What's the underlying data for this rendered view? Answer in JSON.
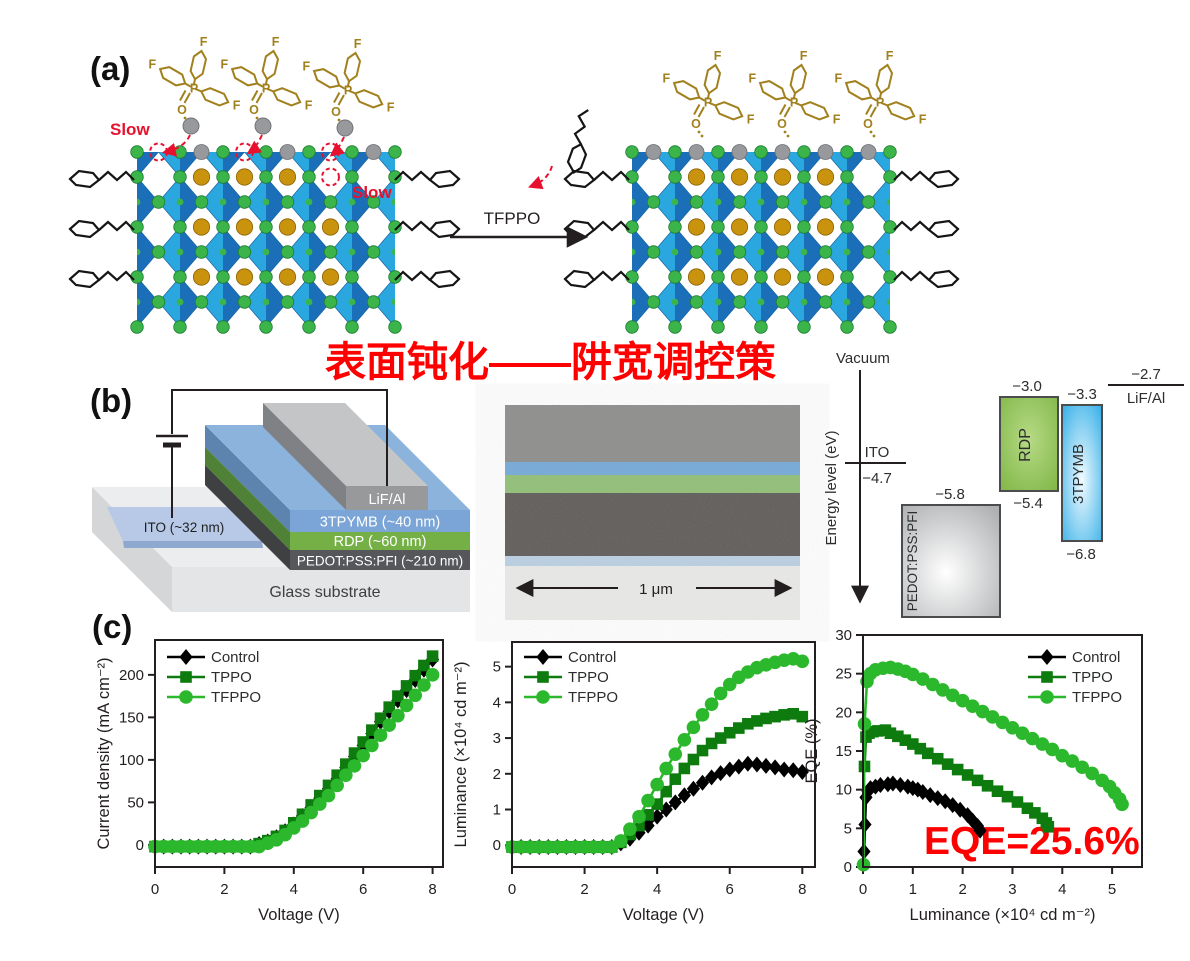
{
  "colors": {
    "annotation_red": "#ff0000",
    "slow_red": "#e8112d",
    "molecule_gold": "#a1801d",
    "lattice_blue_light": "#2ba7e0",
    "lattice_blue_dark": "#1b6fb8",
    "lattice_edge": "#1263a5",
    "ion_green": "#3bb54a",
    "ion_gold": "#c9930d",
    "ion_grey": "#97999c",
    "series_control": "#000000",
    "series_tppo": "#0d7b0d",
    "series_tfppo": "#2cb82c",
    "axis_ink": "#231f20"
  },
  "panel_a": {
    "label": "(a)",
    "slow_1": "Slow",
    "slow_2": "Slow",
    "arrow_label": "TFPPO",
    "atoms": {
      "p": "P",
      "o": "O",
      "f": "F"
    },
    "title_cn": "表面钝化——阱宽调控策"
  },
  "panel_b": {
    "label": "(b)",
    "device": {
      "lif_al": "LiF/Al",
      "tpymb": "3TPYMB (~40 nm)",
      "rdp": "RDP (~60 nm)",
      "pedot": "PEDOT:PSS:PFI (~210 nm)",
      "ito": "ITO (~32 nm)",
      "glass": "Glass substrate"
    },
    "sem": {
      "scale_label": "1 μm"
    },
    "energy": {
      "vacuum": "Vacuum",
      "axis_label": "Energy level (eV)",
      "ito": "ITO",
      "ito_level": "−4.7",
      "pedot": "PEDOT:PSS:PFI",
      "pedot_level": "−5.8",
      "rdp": "RDP",
      "rdp_top": "−3.0",
      "rdp_bottom": "−5.4",
      "tpymb": "3TPYMB",
      "tpymb_top": "−3.3",
      "tpymb_bottom": "−6.8",
      "lifal": "LiF/Al",
      "lifal_level": "−2.7"
    }
  },
  "panel_c": {
    "label": "(c)",
    "eqe_annotation": "EQE=25.6%"
  },
  "chart_data": [
    {
      "type": "line",
      "xlabel": "Voltage (V)",
      "ylabel": "Current density (mA cm⁻²)",
      "xlim": [
        0,
        8.3
      ],
      "ylim": [
        -26,
        241
      ],
      "xticks": [
        0,
        2,
        4,
        6,
        8
      ],
      "yticks": [
        0,
        50,
        100,
        150,
        200
      ],
      "legend_position": "top-left",
      "grid": false,
      "series": [
        {
          "name": "Control",
          "color": "#000000",
          "marker": "diamond",
          "x": [
            0,
            0.25,
            0.5,
            0.75,
            1,
            1.25,
            1.5,
            1.75,
            2,
            2.25,
            2.5,
            2.75,
            3,
            3.25,
            3.5,
            3.75,
            4,
            4.25,
            4.5,
            4.75,
            5,
            5.25,
            5.5,
            5.75,
            6,
            6.25,
            6.5,
            6.75,
            7,
            7.25,
            7.5,
            7.75,
            8
          ],
          "y": [
            -2,
            -2,
            -2,
            -2,
            -2,
            -2,
            -2,
            -2,
            -2,
            -2,
            -2,
            -2,
            1,
            4,
            9,
            16,
            24,
            34,
            44,
            55,
            66,
            78,
            91,
            104,
            117,
            131,
            145,
            157,
            170,
            182,
            194,
            206,
            218
          ]
        },
        {
          "name": "TPPO",
          "color": "#0d7b0d",
          "marker": "square",
          "x": [
            0,
            0.25,
            0.5,
            0.75,
            1,
            1.25,
            1.5,
            1.75,
            2,
            2.25,
            2.5,
            2.75,
            3,
            3.25,
            3.5,
            3.75,
            4,
            4.25,
            4.5,
            4.75,
            5,
            5.25,
            5.5,
            5.75,
            6,
            6.25,
            6.5,
            6.75,
            7,
            7.25,
            7.5,
            7.75,
            8
          ],
          "y": [
            -2,
            -2,
            -2,
            -2,
            -2,
            -2,
            -2,
            -2,
            -2,
            -2,
            -2,
            -2,
            1.5,
            5,
            10,
            17,
            26,
            36,
            47,
            58,
            70,
            82,
            95,
            108,
            121,
            135,
            149,
            162,
            175,
            187,
            199,
            211,
            222
          ]
        },
        {
          "name": "TFPPO",
          "color": "#2cb82c",
          "marker": "circle",
          "x": [
            0,
            0.25,
            0.5,
            0.75,
            1,
            1.25,
            1.5,
            1.75,
            2,
            2.25,
            2.5,
            2.75,
            3,
            3.25,
            3.5,
            3.75,
            4,
            4.25,
            4.5,
            4.75,
            5,
            5.25,
            5.5,
            5.75,
            6,
            6.25,
            6.5,
            6.75,
            7,
            7.25,
            7.5,
            7.75,
            8
          ],
          "y": [
            -2,
            -2,
            -2,
            -2,
            -2,
            -2,
            -2,
            -2,
            -2,
            -2,
            -2,
            -2,
            -2,
            2,
            6,
            12,
            20,
            28,
            38,
            48,
            58,
            70,
            82,
            93,
            105,
            117,
            129,
            141,
            152,
            164,
            176,
            188,
            200
          ]
        }
      ]
    },
    {
      "type": "line",
      "xlabel": "Voltage (V)",
      "ylabel": "Luminance (×10⁴ cd m⁻²)",
      "xlim": [
        0,
        8.35
      ],
      "ylim": [
        -0.61,
        5.69
      ],
      "xticks": [
        0,
        2,
        4,
        6,
        8
      ],
      "yticks": [
        0,
        1,
        2,
        3,
        4,
        5
      ],
      "legend_position": "top-left",
      "grid": false,
      "series": [
        {
          "name": "Control",
          "color": "#000000",
          "marker": "diamond",
          "x": [
            0,
            0.25,
            0.5,
            0.75,
            1,
            1.25,
            1.5,
            1.75,
            2,
            2.25,
            2.5,
            2.75,
            3,
            3.25,
            3.5,
            3.75,
            4,
            4.25,
            4.5,
            4.75,
            5,
            5.25,
            5.5,
            5.75,
            6,
            6.25,
            6.5,
            6.75,
            7,
            7.25,
            7.5,
            7.75,
            8
          ],
          "y": [
            -0.05,
            -0.05,
            -0.05,
            -0.05,
            -0.05,
            -0.05,
            -0.05,
            -0.05,
            -0.05,
            -0.05,
            -0.05,
            -0.05,
            0.05,
            0.18,
            0.35,
            0.55,
            0.8,
            1.0,
            1.2,
            1.4,
            1.58,
            1.75,
            1.9,
            2.02,
            2.12,
            2.2,
            2.28,
            2.26,
            2.22,
            2.18,
            2.12,
            2.1,
            2.05
          ]
        },
        {
          "name": "TPPO",
          "color": "#0d7b0d",
          "marker": "square",
          "x": [
            0,
            0.25,
            0.5,
            0.75,
            1,
            1.25,
            1.5,
            1.75,
            2,
            2.25,
            2.5,
            2.75,
            3,
            3.25,
            3.5,
            3.75,
            4,
            4.25,
            4.5,
            4.75,
            5,
            5.25,
            5.5,
            5.75,
            6,
            6.25,
            6.5,
            6.75,
            7,
            7.25,
            7.5,
            7.75,
            8
          ],
          "y": [
            -0.05,
            -0.05,
            -0.05,
            -0.05,
            -0.05,
            -0.05,
            -0.05,
            -0.05,
            -0.05,
            -0.05,
            -0.05,
            -0.05,
            0.08,
            0.3,
            0.55,
            0.85,
            1.15,
            1.5,
            1.85,
            2.15,
            2.4,
            2.65,
            2.85,
            3.0,
            3.15,
            3.28,
            3.4,
            3.48,
            3.55,
            3.6,
            3.65,
            3.68,
            3.6
          ]
        },
        {
          "name": "TFPPO",
          "color": "#2cb82c",
          "marker": "circle",
          "x": [
            0,
            0.25,
            0.5,
            0.75,
            1,
            1.25,
            1.5,
            1.75,
            2,
            2.25,
            2.5,
            2.75,
            3,
            3.25,
            3.5,
            3.75,
            4,
            4.25,
            4.5,
            4.75,
            5,
            5.25,
            5.5,
            5.75,
            6,
            6.25,
            6.5,
            6.75,
            7,
            7.25,
            7.5,
            7.75,
            8
          ],
          "y": [
            -0.05,
            -0.05,
            -0.05,
            -0.05,
            -0.05,
            -0.05,
            -0.05,
            -0.05,
            -0.05,
            -0.05,
            -0.05,
            -0.05,
            0.12,
            0.45,
            0.8,
            1.25,
            1.7,
            2.15,
            2.55,
            2.95,
            3.3,
            3.65,
            3.95,
            4.25,
            4.5,
            4.7,
            4.85,
            4.97,
            5.05,
            5.12,
            5.18,
            5.22,
            5.15
          ]
        }
      ]
    },
    {
      "type": "line",
      "xlabel": "Luminance (×10⁴ cd m⁻²)",
      "ylabel": "EQE (%)",
      "xlim": [
        0,
        5.6
      ],
      "ylim": [
        0,
        30
      ],
      "xticks": [
        0,
        1,
        2,
        3,
        4,
        5
      ],
      "yticks": [
        0,
        5,
        10,
        15,
        20,
        25,
        30
      ],
      "legend_position": "top-right",
      "grid": false,
      "series": [
        {
          "name": "Control",
          "color": "#000000",
          "marker": "diamond",
          "x": [
            0.02,
            0.04,
            0.06,
            0.1,
            0.15,
            0.25,
            0.35,
            0.5,
            0.6,
            0.75,
            0.9,
            1.0,
            1.1,
            1.2,
            1.35,
            1.5,
            1.65,
            1.8,
            1.95,
            2.1,
            2.2,
            2.3,
            2.35
          ],
          "y": [
            2,
            5.5,
            9,
            9.8,
            10.2,
            10.4,
            10.6,
            10.7,
            10.8,
            10.6,
            10.4,
            10.2,
            10.0,
            9.7,
            9.3,
            8.9,
            8.5,
            8.0,
            7.4,
            6.7,
            6.0,
            5.3,
            4.7
          ]
        },
        {
          "name": "TPPO",
          "color": "#0d7b0d",
          "marker": "square",
          "x": [
            0.03,
            0.06,
            0.12,
            0.2,
            0.3,
            0.45,
            0.55,
            0.7,
            0.85,
            1.0,
            1.15,
            1.3,
            1.5,
            1.7,
            1.9,
            2.1,
            2.3,
            2.5,
            2.7,
            2.9,
            3.1,
            3.3,
            3.45,
            3.6,
            3.68,
            3.72
          ],
          "y": [
            13,
            16.8,
            17.3,
            17.5,
            17.6,
            17.7,
            17.3,
            16.9,
            16.4,
            15.9,
            15.3,
            14.7,
            14.0,
            13.3,
            12.6,
            11.9,
            11.2,
            10.5,
            9.8,
            9.1,
            8.4,
            7.6,
            7.0,
            6.3,
            5.7,
            5.2
          ]
        },
        {
          "name": "TFPPO",
          "color": "#2cb82c",
          "marker": "circle",
          "x": [
            0.01,
            0.03,
            0.08,
            0.15,
            0.25,
            0.4,
            0.55,
            0.7,
            0.85,
            1.0,
            1.2,
            1.4,
            1.6,
            1.8,
            2.0,
            2.2,
            2.4,
            2.6,
            2.8,
            3.0,
            3.2,
            3.4,
            3.6,
            3.8,
            4.0,
            4.2,
            4.4,
            4.6,
            4.8,
            4.95,
            5.05,
            5.15,
            5.2
          ],
          "y": [
            0.3,
            18.5,
            24.0,
            25.0,
            25.5,
            25.7,
            25.8,
            25.6,
            25.3,
            24.9,
            24.3,
            23.6,
            22.9,
            22.2,
            21.5,
            20.8,
            20.1,
            19.4,
            18.7,
            18.0,
            17.3,
            16.6,
            15.9,
            15.2,
            14.4,
            13.7,
            12.9,
            12.1,
            11.2,
            10.4,
            9.6,
            8.8,
            8.1
          ]
        }
      ]
    }
  ]
}
